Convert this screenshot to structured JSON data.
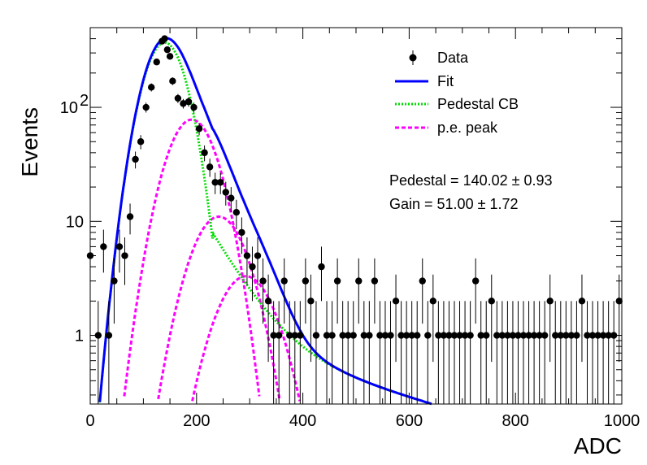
{
  "chart_data": {
    "type": "scatter",
    "xlabel": "ADC",
    "ylabel": "Events",
    "xlim": [
      0,
      1000
    ],
    "ylim": [
      0.25,
      500
    ],
    "yscale": "log",
    "grid": false,
    "legend_position": "top-right",
    "x_ticks": [
      {
        "value": 0,
        "label": "0"
      },
      {
        "value": 200,
        "label": "200"
      },
      {
        "value": 400,
        "label": "400"
      },
      {
        "value": 600,
        "label": "600"
      },
      {
        "value": 800,
        "label": "800"
      },
      {
        "value": 1000,
        "label": "1000"
      }
    ],
    "y_ticks": [
      {
        "value": 1,
        "label": "1"
      },
      {
        "value": 10,
        "label": "10"
      },
      {
        "value": 100,
        "label": "10",
        "exp": "2"
      }
    ],
    "legend": [
      {
        "label": "Data",
        "style": "marker",
        "color": "#000000"
      },
      {
        "label": "Fit",
        "style": "solid",
        "color": "#0000ff"
      },
      {
        "label": "Pedestal CB",
        "style": "dotted",
        "color": "#00dd00"
      },
      {
        "label": "p.e. peak",
        "style": "dashed",
        "color": "#ff00ff"
      }
    ],
    "annotations": [
      {
        "text": "Pedestal = 140.02",
        "pm": "0.93"
      },
      {
        "text": "Gain = 51.00",
        "pm": "1.72"
      }
    ],
    "data_points": {
      "x": [
        0,
        15,
        25,
        35,
        45,
        55,
        65,
        75,
        85,
        95,
        105,
        115,
        125,
        135,
        140,
        145,
        150,
        155,
        165,
        175,
        185,
        195,
        205,
        215,
        225,
        235,
        245,
        255,
        265,
        275,
        285,
        295,
        305,
        315,
        325,
        335,
        345,
        355,
        365,
        375,
        385,
        395,
        405,
        415,
        425,
        435,
        445,
        455,
        465,
        475,
        485,
        495,
        505,
        515,
        525,
        535,
        545,
        555,
        565,
        575,
        585,
        595,
        605,
        615,
        625,
        635,
        645,
        655,
        665,
        675,
        685,
        695,
        705,
        715,
        725,
        735,
        745,
        755,
        765,
        775,
        785,
        795,
        805,
        815,
        825,
        835,
        845,
        855,
        865,
        875,
        885,
        895,
        905,
        915,
        925,
        935,
        945,
        955,
        965,
        975,
        985,
        995
      ],
      "y": [
        5,
        1,
        6,
        1,
        3,
        6,
        5,
        11,
        35,
        50,
        100,
        150,
        250,
        380,
        400,
        320,
        280,
        170,
        120,
        108,
        112,
        100,
        65,
        40,
        30,
        22,
        22,
        18,
        16,
        12,
        8,
        5,
        4,
        5,
        3,
        2,
        1,
        1,
        3,
        1,
        1,
        1,
        3,
        2,
        1,
        4,
        1,
        1,
        3,
        1,
        1,
        1,
        3,
        1,
        1,
        3,
        1,
        1,
        1,
        2,
        1,
        1,
        1,
        1,
        3,
        1,
        2,
        1,
        1,
        1,
        1,
        1,
        1,
        1,
        3,
        1,
        1,
        2,
        1,
        1,
        1,
        1,
        1,
        1,
        1,
        1,
        1,
        1,
        2,
        1,
        1,
        1,
        1,
        1,
        2,
        1,
        1,
        1,
        1,
        1,
        1,
        2
      ]
    },
    "fit_parameters": {
      "pedestal": 140.02,
      "gain": 51.0
    },
    "fit_curves": {
      "pedestal_cb": {
        "mean": 140,
        "sigma": 32,
        "amplitude": 370,
        "tail_start": 230
      },
      "pe_peaks": [
        {
          "mean": 191,
          "sigma": 38,
          "amplitude": 78
        },
        {
          "mean": 242,
          "sigma": 42,
          "amplitude": 11
        },
        {
          "mean": 293,
          "sigma": 45,
          "amplitude": 3.3
        }
      ]
    }
  }
}
